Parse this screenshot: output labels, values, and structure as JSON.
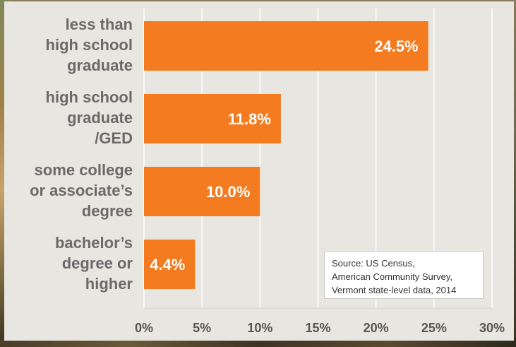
{
  "chart_data": {
    "type": "bar",
    "orientation": "horizontal",
    "categories": [
      [
        "less than",
        "high school",
        "graduate"
      ],
      [
        "high school",
        "graduate",
        "/GED"
      ],
      [
        "some college",
        "or associate’s",
        "degree"
      ],
      [
        "bachelor’s",
        "degree or",
        "higher"
      ]
    ],
    "values": [
      24.5,
      11.8,
      10.0,
      4.4
    ],
    "value_labels": [
      "24.5%",
      "11.8%",
      "10.0%",
      "4.4%"
    ],
    "xlim": [
      0,
      30
    ],
    "xticks": [
      0,
      5,
      10,
      15,
      20,
      25,
      30
    ],
    "xtick_labels": [
      "0%",
      "5%",
      "10%",
      "15%",
      "20%",
      "25%",
      "30%"
    ],
    "grid": "vertical",
    "bar_color": "#f47b20",
    "annotation": {
      "lines": [
        "Source: US Census,",
        "American Community Survey,",
        "Vermont state-level data, 2014"
      ]
    }
  }
}
